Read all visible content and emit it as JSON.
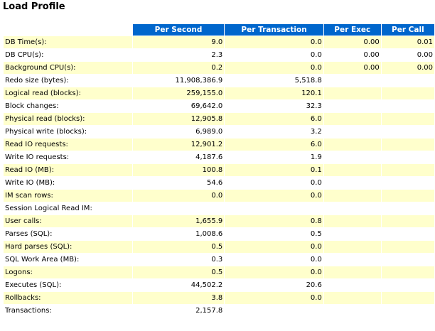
{
  "title": "Load Profile",
  "columns": [
    "",
    "Per Second",
    "Per Transaction",
    "Per Exec",
    "Per Call"
  ],
  "rows": [
    {
      "label": "DB Time(s):",
      "per_second": "9.0",
      "per_transaction": "0.0",
      "per_exec": "0.00",
      "per_call": "0.01"
    },
    {
      "label": "DB CPU(s):",
      "per_second": "2.3",
      "per_transaction": "0.0",
      "per_exec": "0.00",
      "per_call": "0.00"
    },
    {
      "label": "Background CPU(s):",
      "per_second": "0.2",
      "per_transaction": "0.0",
      "per_exec": "0.00",
      "per_call": "0.00"
    },
    {
      "label": "Redo size (bytes):",
      "per_second": "11,908,386.9",
      "per_transaction": "5,518.8",
      "per_exec": "",
      "per_call": ""
    },
    {
      "label": "Logical read (blocks):",
      "per_second": "259,155.0",
      "per_transaction": "120.1",
      "per_exec": "",
      "per_call": ""
    },
    {
      "label": "Block changes:",
      "per_second": "69,642.0",
      "per_transaction": "32.3",
      "per_exec": "",
      "per_call": ""
    },
    {
      "label": "Physical read (blocks):",
      "per_second": "12,905.8",
      "per_transaction": "6.0",
      "per_exec": "",
      "per_call": ""
    },
    {
      "label": "Physical write (blocks):",
      "per_second": "6,989.0",
      "per_transaction": "3.2",
      "per_exec": "",
      "per_call": ""
    },
    {
      "label": "Read IO requests:",
      "per_second": "12,901.2",
      "per_transaction": "6.0",
      "per_exec": "",
      "per_call": ""
    },
    {
      "label": "Write IO requests:",
      "per_second": "4,187.6",
      "per_transaction": "1.9",
      "per_exec": "",
      "per_call": ""
    },
    {
      "label": "Read IO (MB):",
      "per_second": "100.8",
      "per_transaction": "0.1",
      "per_exec": "",
      "per_call": ""
    },
    {
      "label": "Write IO (MB):",
      "per_second": "54.6",
      "per_transaction": "0.0",
      "per_exec": "",
      "per_call": ""
    },
    {
      "label": "IM scan rows:",
      "per_second": "0.0",
      "per_transaction": "0.0",
      "per_exec": "",
      "per_call": ""
    },
    {
      "label": "Session Logical Read IM:",
      "per_second": "",
      "per_transaction": "",
      "per_exec": "",
      "per_call": ""
    },
    {
      "label": "User calls:",
      "per_second": "1,655.9",
      "per_transaction": "0.8",
      "per_exec": "",
      "per_call": ""
    },
    {
      "label": "Parses (SQL):",
      "per_second": "1,008.6",
      "per_transaction": "0.5",
      "per_exec": "",
      "per_call": ""
    },
    {
      "label": "Hard parses (SQL):",
      "per_second": "0.5",
      "per_transaction": "0.0",
      "per_exec": "",
      "per_call": ""
    },
    {
      "label": "SQL Work Area (MB):",
      "per_second": "0.3",
      "per_transaction": "0.0",
      "per_exec": "",
      "per_call": ""
    },
    {
      "label": "Logons:",
      "per_second": "0.5",
      "per_transaction": "0.0",
      "per_exec": "",
      "per_call": ""
    },
    {
      "label": "Executes (SQL):",
      "per_second": "44,502.2",
      "per_transaction": "20.6",
      "per_exec": "",
      "per_call": ""
    },
    {
      "label": "Rollbacks:",
      "per_second": "3.8",
      "per_transaction": "0.0",
      "per_exec": "",
      "per_call": ""
    },
    {
      "label": "Transactions:",
      "per_second": "2,157.8",
      "per_transaction": "",
      "per_exec": "",
      "per_call": ""
    }
  ],
  "colors": {
    "header_bg": "#0066cc",
    "header_fg": "#ffffff",
    "odd_row_bg": "#ffffcc",
    "even_row_bg": "#ffffff"
  }
}
